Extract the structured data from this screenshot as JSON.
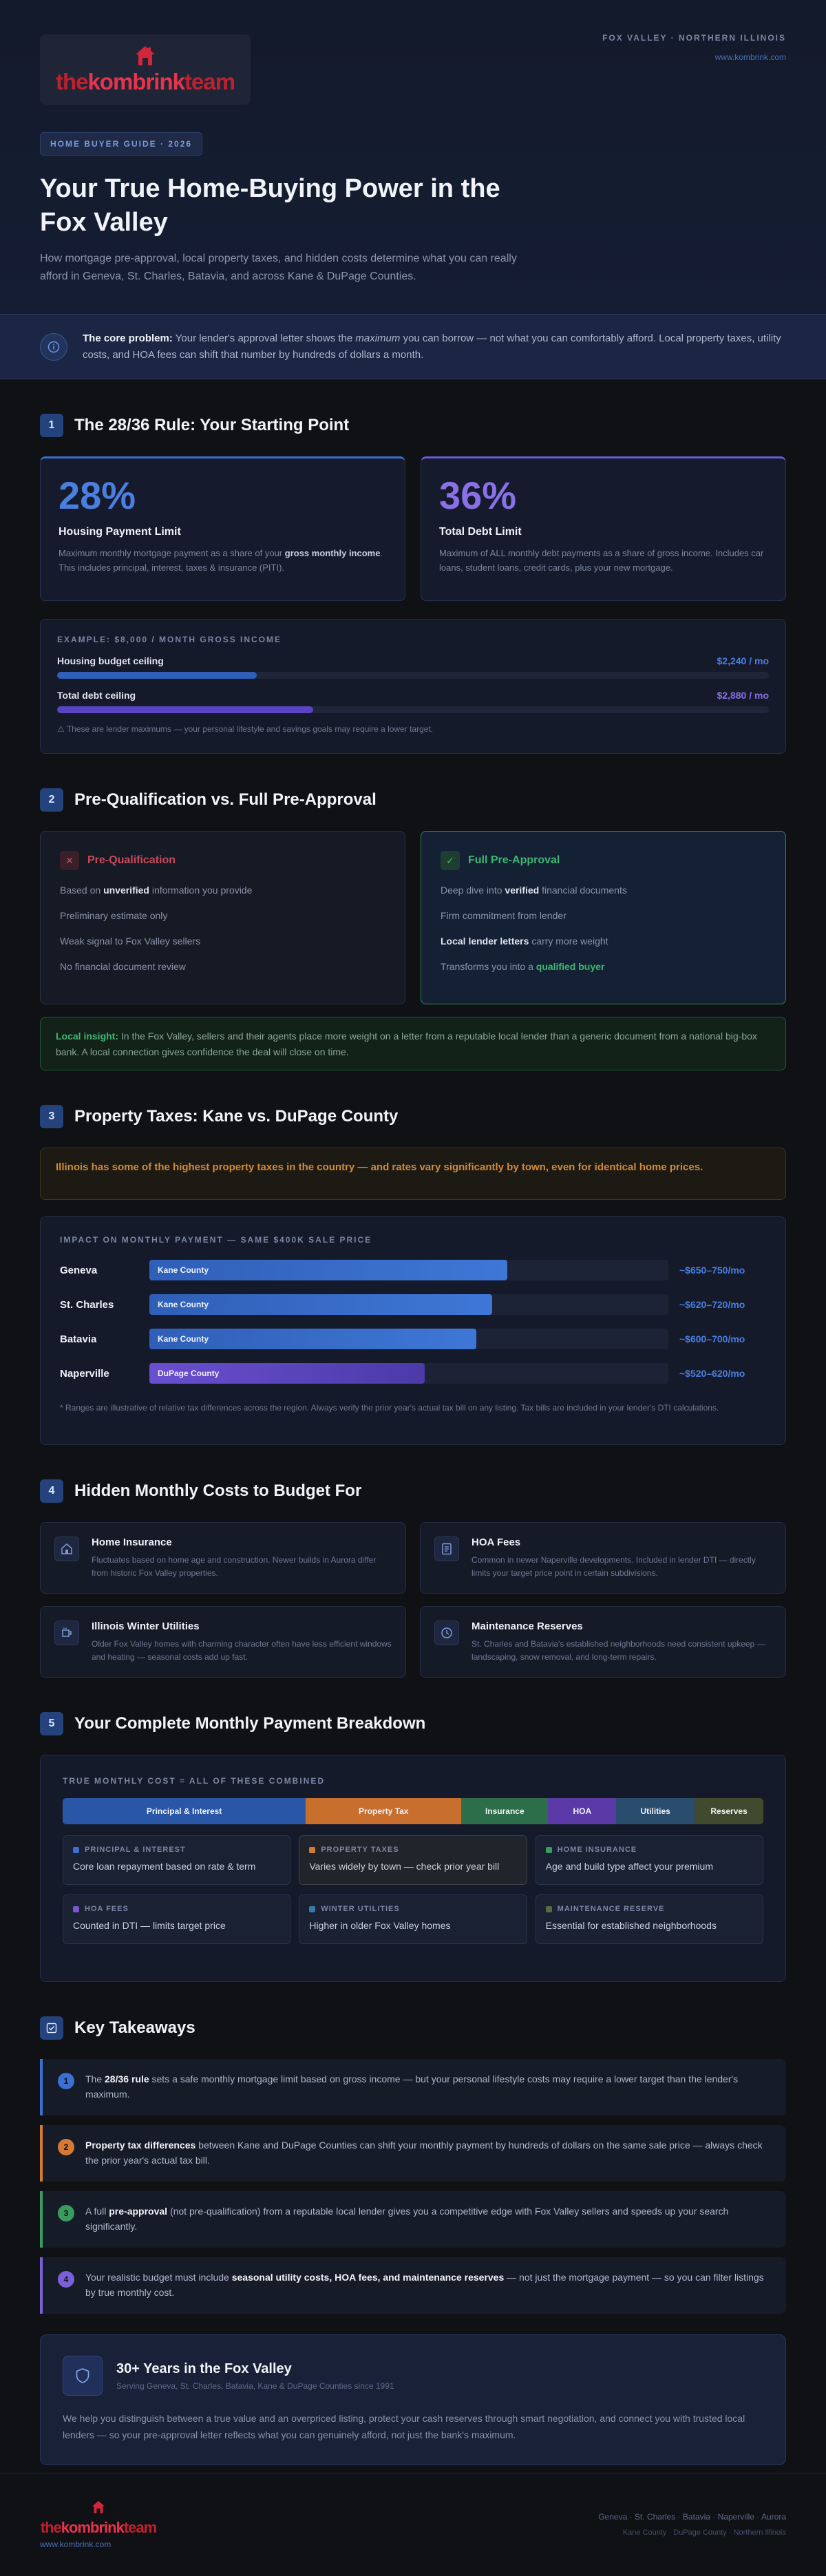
{
  "brand": {
    "logo_pre": "the",
    "logo_mid": "kombrink",
    "logo_post": "team"
  },
  "header": {
    "location": "FOX VALLEY · NORTHERN ILLINOIS",
    "url": "www.kombrink.com"
  },
  "hero": {
    "pill": "HOME BUYER GUIDE · 2026",
    "title": "Your True Home-Buying Power in the Fox Valley",
    "subtitle": "How mortgage pre-approval, local property taxes, and hidden costs determine what you can really afford in Geneva, St. Charles, Batavia, and across Kane & DuPage Counties."
  },
  "core": {
    "lead": "The core problem:",
    "text1": " Your lender's approval letter shows the ",
    "em": "maximum",
    "text2": " you can borrow — not what you can comfortably afford. Local property taxes, utility costs, and HOA fees can shift that number by hundreds of dollars a month."
  },
  "sections": {
    "s1": {
      "num": "1",
      "title": "The 28/36 Rule: Your Starting Point"
    },
    "s2": {
      "num": "2",
      "title": "Pre-Qualification vs. Full Pre-Approval"
    },
    "s3": {
      "num": "3",
      "title": "Property Taxes: Kane vs. DuPage County"
    },
    "s4": {
      "num": "4",
      "title": "Hidden Monthly Costs to Budget For"
    },
    "s5": {
      "num": "5",
      "title": "Your Complete Monthly Payment Breakdown"
    },
    "s6": {
      "title": "Key Takeaways"
    }
  },
  "rule": {
    "housing": {
      "pct": "28%",
      "name": "Housing Payment Limit",
      "d1": "Maximum monthly mortgage payment as a share of your ",
      "bold": "gross monthly income",
      "d2": ". This includes principal, interest, taxes & insurance (PITI)."
    },
    "debt": {
      "pct": "36%",
      "name": "Total Debt Limit",
      "desc": "Maximum of ALL monthly debt payments as a share of gross income. Includes car loans, student loans, credit cards, plus your new mortgage."
    }
  },
  "example": {
    "label": "EXAMPLE: $8,000 / MONTH GROSS INCOME",
    "rows": [
      {
        "label": "Housing budget ceiling",
        "value": "$2,240 / mo",
        "fill": 0.28,
        "color": "#2f5fb8",
        "textcolor": "#4a7fdf"
      },
      {
        "label": "Total debt ceiling",
        "value": "$2,880 / mo",
        "fill": 0.36,
        "color": "#5a44c4",
        "textcolor": "#8a70e6"
      }
    ],
    "note": "⚠ These are lender maximums — your personal lifestyle and savings goals may require a lower target."
  },
  "prequal": {
    "bad": {
      "icon": "✕",
      "title": "Pre-Qualification",
      "i1a": "Based on ",
      "i1b": "unverified",
      "i1c": " information you provide",
      "i2": "Preliminary estimate only",
      "i3": "Weak signal to Fox Valley sellers",
      "i4": "No financial document review"
    },
    "good": {
      "icon": "✓",
      "title": "Full Pre-Approval",
      "i1a": "Deep dive into ",
      "i1b": "verified",
      "i1c": " financial documents",
      "i2": "Firm commitment from lender",
      "i3a": "Local lender letters",
      "i3b": " carry more weight",
      "i4a": "Transforms you into a ",
      "i4b": "qualified buyer"
    },
    "insight_lead": "Local insight:",
    "insight": " In the Fox Valley, sellers and their agents place more weight on a letter from a reputable local lender than a generic document from a national big-box bank. A local connection gives confidence the deal will close on time."
  },
  "tax": {
    "warning": "Illinois has some of the highest property taxes in the country — and rates vary significantly by town, even for identical home prices.",
    "label": "IMPACT ON MONTHLY PAYMENT — SAME $400K SALE PRICE",
    "rows": [
      {
        "city": "Geneva",
        "county": "Kane County",
        "range": "~$650–750/mo",
        "fill": 0.69,
        "color": "linear-gradient(90deg,#2f5fb8,#3f77d6)"
      },
      {
        "city": "St. Charles",
        "county": "Kane County",
        "range": "~$620–720/mo",
        "fill": 0.66,
        "color": "linear-gradient(90deg,#2f5fb8,#3f77d6)"
      },
      {
        "city": "Batavia",
        "county": "Kane County",
        "range": "~$600–700/mo",
        "fill": 0.63,
        "color": "linear-gradient(90deg,#2f5fb8,#3f77d6)"
      },
      {
        "city": "Naperville",
        "county": "DuPage County",
        "range": "~$520–620/mo",
        "fill": 0.53,
        "color": "linear-gradient(90deg,#6a4fd0,#4b3aa8)"
      }
    ],
    "note": "* Ranges are illustrative of relative tax differences across the region. Always verify the prior year's actual tax bill on any listing. Tax bills are included in your lender's DTI calculations."
  },
  "costs": [
    {
      "icon": "home-icon",
      "title": "Home Insurance",
      "desc": "Fluctuates based on home age and construction. Newer builds in Aurora differ from historic Fox Valley properties."
    },
    {
      "icon": "document-icon",
      "title": "HOA Fees",
      "desc": "Common in newer Naperville developments. Included in lender DTI — directly limits your target price point in certain subdivisions."
    },
    {
      "icon": "mug-icon",
      "title": "Illinois Winter Utilities",
      "desc": "Older Fox Valley homes with charming character often have less efficient windows and heating — seasonal costs add up fast."
    },
    {
      "icon": "clock-icon",
      "title": "Maintenance Reserves",
      "desc": "St. Charles and Batavia's established neighborhoods need consistent upkeep — landscaping, snow removal, and long-term repairs."
    }
  ],
  "breakdown": {
    "label": "TRUE MONTHLY COST = ALL OF THESE COMBINED",
    "segments": [
      {
        "name": "Principal & Interest",
        "share": 0.347,
        "color": "#2a56a8"
      },
      {
        "name": "Property Tax",
        "share": 0.222,
        "color": "#c86f2e"
      },
      {
        "name": "Insurance",
        "share": 0.124,
        "color": "#2d6e4a"
      },
      {
        "name": "HOA",
        "share": 0.097,
        "color": "#5b3aa8"
      },
      {
        "name": "Utilities",
        "share": 0.112,
        "color": "#2a4d6e"
      },
      {
        "name": "Reserves",
        "share": 0.098,
        "color": "#3f4a2e"
      }
    ],
    "cards": [
      {
        "label": "PRINCIPAL & INTEREST",
        "value": "Core loan repayment based on rate & term",
        "dot": "#3b6fd0",
        "hl": false
      },
      {
        "label": "PROPERTY TAXES",
        "value": "Varies widely by town — check prior year bill",
        "dot": "#d47a32",
        "hl": true
      },
      {
        "label": "HOME INSURANCE",
        "value": "Age and build type affect your premium",
        "dot": "#3a9a60",
        "hl": false
      },
      {
        "label": "HOA FEES",
        "value": "Counted in DTI — limits target price",
        "dot": "#7a55d0",
        "hl": false
      },
      {
        "label": "WINTER UTILITIES",
        "value": "Higher in older Fox Valley homes",
        "dot": "#3a78a8",
        "hl": false
      },
      {
        "label": "MAINTENANCE RESERVE",
        "value": "Essential for established neighborhoods",
        "dot": "#5a6a3a",
        "hl": false
      }
    ]
  },
  "takeaways": [
    {
      "num": "1",
      "color": "#3b6fd0",
      "a": "The ",
      "b": "28/36 rule",
      "c": " sets a safe monthly mortgage limit based on gross income — but your personal lifestyle costs may require a lower target than the lender's maximum."
    },
    {
      "num": "2",
      "color": "#d47a32",
      "a": "",
      "b": "Property tax differences",
      "c": " between Kane and DuPage Counties can shift your monthly payment by hundreds of dollars on the same sale price — always check the prior year's actual tax bill."
    },
    {
      "num": "3",
      "color": "#3a9a60",
      "a": "A full ",
      "b": "pre-approval",
      "c": " (not pre-qualification) from a reputable local lender gives you a competitive edge with Fox Valley sellers and speeds up your search significantly."
    },
    {
      "num": "4",
      "color": "#7a60d6",
      "a": "Your realistic budget must include ",
      "b": "seasonal utility costs, HOA fees, and maintenance reserves",
      "c": " — not just the mortgage payment — so you can filter listings by true monthly cost."
    }
  ],
  "experience": {
    "title": "30+ Years in the Fox Valley",
    "sub": "Serving Geneva, St. Charles, Batavia, Kane & DuPage Counties since 1991",
    "body": "We help you distinguish between a true value and an overpriced listing, protect your cash reserves through smart negotiation, and connect you with trusted local lenders — so your pre-approval letter reflects what you can genuinely afford, not just the bank's maximum."
  },
  "footer": {
    "url": "www.kombrink.com",
    "towns": "Geneva · St. Charles · Batavia · Naperville · Aurora",
    "area": "Kane County · DuPage County · Northern Illinois"
  }
}
